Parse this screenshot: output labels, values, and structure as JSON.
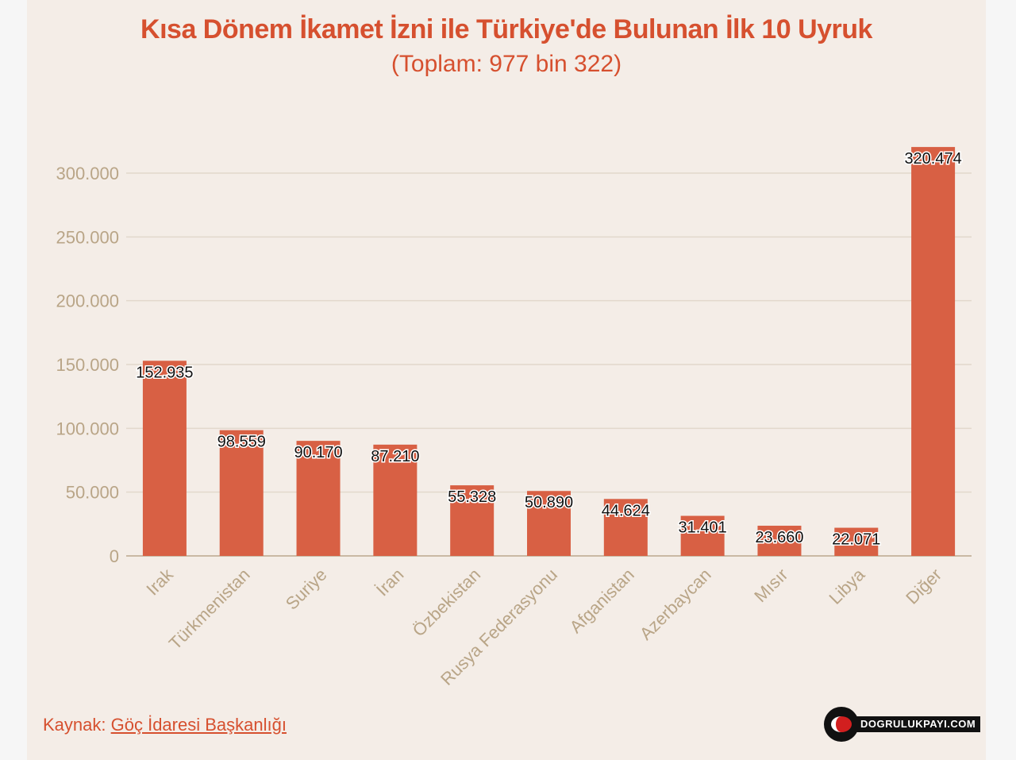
{
  "title": "Kısa Dönem İkamet İzni ile Türkiye'de Bulunan İlk 10 Uyruk",
  "subtitle": "(Toplam: 977 bin 322)",
  "source": {
    "prefix": "Kaynak:",
    "link": "Göç İdaresi Başkanlığı"
  },
  "logo_text": "DOGRULUKPAYI.COM",
  "colors": {
    "bar": "#d86044",
    "title": "#d6502f",
    "axis_text": "#b9a587",
    "background": "#f4ede7",
    "grid": "#e2d8cc"
  },
  "chart_data": {
    "type": "bar",
    "title": "Kısa Dönem İkamet İzni ile Türkiye'de Bulunan İlk 10 Uyruk",
    "subtitle": "(Toplam: 977 bin 322)",
    "categories": [
      "Irak",
      "Türkmenistan",
      "Suriye",
      "İran",
      "Özbekistan",
      "Rusya Federasyonu",
      "Afganistan",
      "Azerbaycan",
      "Mısır",
      "Libya",
      "Diğer"
    ],
    "values": [
      152935,
      98559,
      90170,
      87210,
      55328,
      50890,
      44624,
      31401,
      23660,
      22071,
      320474
    ],
    "value_labels": [
      "152.935",
      "98.559",
      "90.170",
      "87.210",
      "55.328",
      "50.890",
      "44.624",
      "31.401",
      "23.660",
      "22.071",
      "320.474"
    ],
    "y_ticks": [
      0,
      50000,
      100000,
      150000,
      200000,
      250000,
      300000
    ],
    "y_tick_labels": [
      "0",
      "50.000",
      "100.000",
      "150.000",
      "200.000",
      "250.000",
      "300.000"
    ],
    "ylim": [
      0,
      320474
    ],
    "grid": true,
    "legend": false
  }
}
